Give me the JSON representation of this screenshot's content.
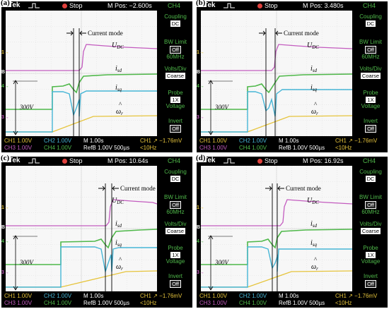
{
  "panels": [
    {
      "tag": "(a)",
      "mpos": "M Pos: −2.600s"
    },
    {
      "tag": "(b)",
      "mpos": "M Pos: 3.480s"
    },
    {
      "tag": "(c)",
      "mpos": "M Pos: 10.64s"
    },
    {
      "tag": "(d)",
      "mpos": "M Pos: 16.92s"
    }
  ],
  "header": {
    "brand": "Tek",
    "status": "Stop",
    "channel": "CH4"
  },
  "side_menu": [
    {
      "label": "Coupling",
      "value": "DC"
    },
    {
      "label": "BW Limit",
      "value": "Off",
      "extra": "60MHz"
    },
    {
      "label": "Volts/Div",
      "value": "Coarse"
    },
    {
      "label": "Probe",
      "value": "1X",
      "extra": "Voltage"
    },
    {
      "label": "Invert",
      "value": "Off"
    }
  ],
  "footer": {
    "ch1": "CH1  1.00V",
    "ch2": "CH2  1.00V",
    "time": "M 1.00s",
    "trig": "CH1 ↗ −1.76mV",
    "ch3": "CH3  1.00V",
    "ch4": "CH4  1.00V",
    "ref": "RefB 1.00V 500µs",
    "freq": "<10Hz"
  },
  "annotations": {
    "current_mode": "Current mode",
    "udc": "U",
    "udc_sub": "DC",
    "isd": "i",
    "isd_sub": "sd",
    "isq": "i",
    "isq_sub": "sq",
    "omega": "ω",
    "omega_sub": "r",
    "omega_hat": "^",
    "voltage": "300V"
  },
  "ground_markers": {
    "ch1": "1→",
    "ch2": "B→",
    "ch3": "3→",
    "ch4": "4→"
  },
  "colors": {
    "ch1": "#e6c43c",
    "ch2": "#47b6d6",
    "ch3": "#c35bbf",
    "ch4": "#4fb84a"
  }
}
